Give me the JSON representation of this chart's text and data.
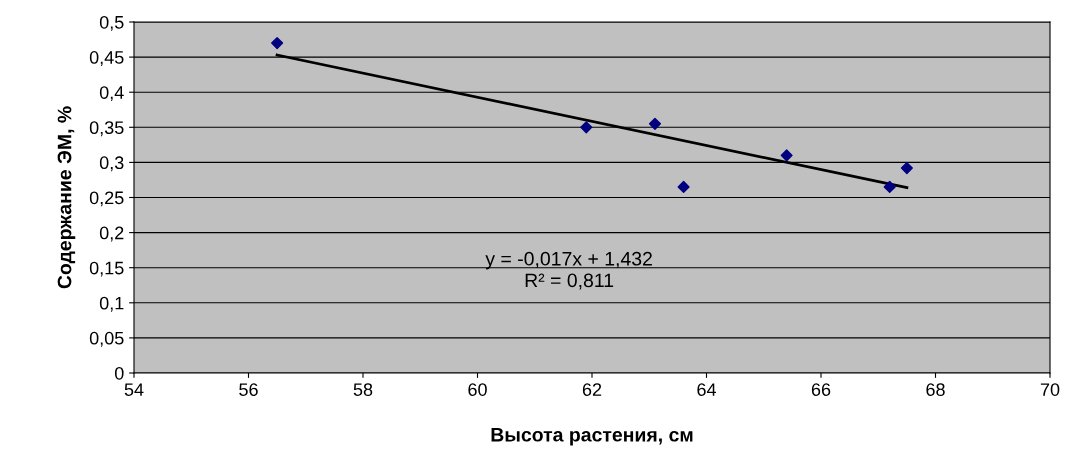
{
  "chart_data": {
    "type": "scatter",
    "xlabel": "Высота растения, см",
    "ylabel": "Содержание ЭМ, %",
    "series": [
      {
        "color": "#000080",
        "marker": "diamond",
        "x": [
          56.5,
          61.9,
          63.1,
          63.6,
          65.4,
          67.2,
          67.5
        ],
        "values": [
          0.47,
          0.35,
          0.355,
          0.265,
          0.31,
          0.265,
          0.292
        ]
      },
      {
        "type": "line",
        "color": "#000000",
        "line_style": "solid",
        "x": [
          56.5,
          67.5
        ],
        "values": [
          0.453,
          0.264
        ]
      }
    ],
    "annotations": [
      "y = -0,017x + 1,432\nR² = 0,811"
    ],
    "xlim": [
      54,
      70
    ],
    "xticks": [
      54,
      56,
      58,
      60,
      62,
      64,
      66,
      68,
      70
    ],
    "ylim": [
      0,
      0.5
    ],
    "yticks": [
      {
        "value": 0,
        "label": "0"
      },
      {
        "value": 0.05,
        "label": "0,05"
      },
      {
        "value": 0.1,
        "label": "0,1"
      },
      {
        "value": 0.15,
        "label": "0,15"
      },
      {
        "value": 0.2,
        "label": "0,2"
      },
      {
        "value": 0.25,
        "label": "0,25"
      },
      {
        "value": 0.3,
        "label": "0,3"
      },
      {
        "value": 0.35,
        "label": "0,35"
      },
      {
        "value": 0.4,
        "label": "0,4"
      },
      {
        "value": 0.45,
        "label": "0,45"
      },
      {
        "value": 0.5,
        "label": "0,5"
      }
    ],
    "grid": "y",
    "legend": false
  }
}
